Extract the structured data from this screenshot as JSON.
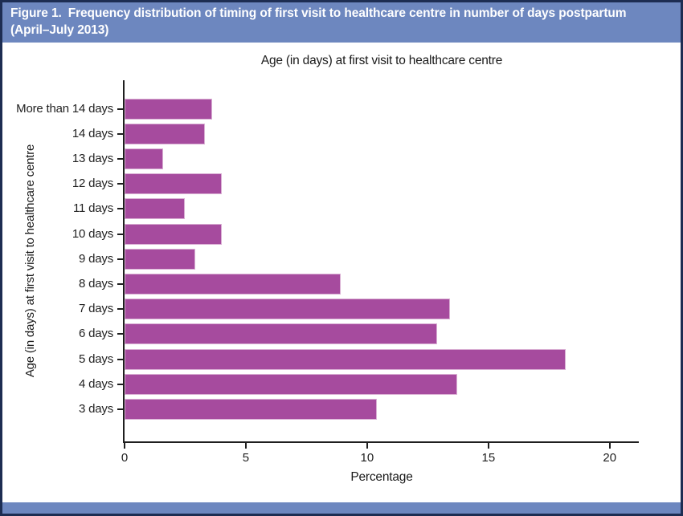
{
  "figure": {
    "label": "Figure 1.",
    "caption": "Frequency distribution of timing of first visit to healthcare centre in number of days postpartum (April–July 2013)"
  },
  "chart_data": {
    "type": "bar",
    "orientation": "horizontal",
    "title": "Age (in days) at first visit to healthcare centre",
    "xlabel": "Percentage",
    "ylabel": "Age (in days) at first visit to healthcare centre",
    "xlim": [
      0,
      21.2
    ],
    "xticks": [
      "0",
      "5",
      "10",
      "15",
      "20"
    ],
    "grid": false,
    "legend": "none",
    "category_order": "top-to-bottom",
    "categories": [
      "More than 14 days",
      "14 days",
      "13 days",
      "12 days",
      "11 days",
      "10 days",
      "9 days",
      "8 days",
      "7 days",
      "6 days",
      "5 days",
      "4 days",
      "3 days"
    ],
    "values": [
      3.6,
      3.3,
      1.6,
      4.0,
      2.5,
      4.0,
      2.9,
      8.9,
      13.4,
      12.9,
      18.2,
      13.7,
      10.4
    ],
    "bar_color": "#a64b9e"
  },
  "colors": {
    "header_background": "#6d87bf",
    "header_text": "#ffffff",
    "panel_border": "#1d2d52",
    "bar_fill": "#a64b9e",
    "bar_edge": "#d9aed3",
    "axis_line": "#1f1f1f",
    "text": "#1a1a1a"
  }
}
